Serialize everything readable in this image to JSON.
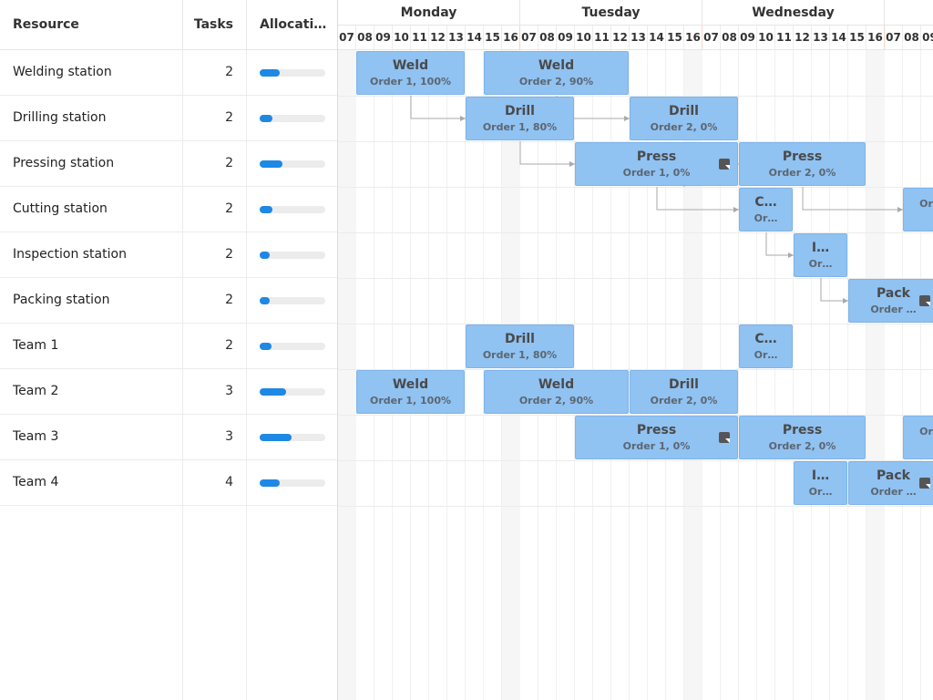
{
  "grid": {
    "headers": {
      "resource": "Resource",
      "tasks": "Tasks",
      "allocation": "Allocati…"
    },
    "rows": [
      {
        "name": "Welding station",
        "tasks": "2",
        "alloc": 0.3
      },
      {
        "name": "Drilling station",
        "tasks": "2",
        "alloc": 0.2
      },
      {
        "name": "Pressing station",
        "tasks": "2",
        "alloc": 0.35
      },
      {
        "name": "Cutting station",
        "tasks": "2",
        "alloc": 0.2
      },
      {
        "name": "Inspection station",
        "tasks": "2",
        "alloc": 0.15
      },
      {
        "name": "Packing station",
        "tasks": "2",
        "alloc": 0.15
      },
      {
        "name": "Team 1",
        "tasks": "2",
        "alloc": 0.18
      },
      {
        "name": "Team 2",
        "tasks": "3",
        "alloc": 0.4
      },
      {
        "name": "Team 3",
        "tasks": "3",
        "alloc": 0.48
      },
      {
        "name": "Team 4",
        "tasks": "4",
        "alloc": 0.3
      }
    ]
  },
  "timeline": {
    "days": [
      "Monday",
      "Tuesday",
      "Wednesday"
    ],
    "hours": [
      "07",
      "08",
      "09",
      "10",
      "11",
      "12",
      "13",
      "14",
      "15",
      "16"
    ]
  },
  "events": [
    {
      "title": "Weld",
      "sub": "Order 1, 100%",
      "row": 0,
      "start": 1,
      "span": 6,
      "note": false
    },
    {
      "title": "Weld",
      "sub": "Order 2, 90%",
      "row": 0,
      "start": 8,
      "span": 8,
      "note": false
    },
    {
      "title": "Drill",
      "sub": "Order 1, 80%",
      "row": 1,
      "start": 7,
      "span": 6,
      "note": false
    },
    {
      "title": "Drill",
      "sub": "Order 2, 0%",
      "row": 1,
      "start": 16,
      "span": 6,
      "note": false
    },
    {
      "title": "Press",
      "sub": "Order 1, 0%",
      "row": 2,
      "start": 13,
      "span": 9,
      "note": true
    },
    {
      "title": "Press",
      "sub": "Order 2, 0%",
      "row": 2,
      "start": 22,
      "span": 7,
      "note": false
    },
    {
      "title": "C…",
      "sub": "Or…",
      "row": 3,
      "start": 22,
      "span": 3,
      "note": false
    },
    {
      "title": "",
      "sub": "Ord",
      "row": 3,
      "start": 31,
      "span": 3,
      "note": false
    },
    {
      "title": "I…",
      "sub": "Or…",
      "row": 4,
      "start": 25,
      "span": 3,
      "note": false
    },
    {
      "title": "Pack",
      "sub": "Order …",
      "row": 5,
      "start": 28,
      "span": 5,
      "note": true
    },
    {
      "title": "Drill",
      "sub": "Order 1, 80%",
      "row": 6,
      "start": 7,
      "span": 6,
      "note": false
    },
    {
      "title": "C…",
      "sub": "Or…",
      "row": 6,
      "start": 22,
      "span": 3,
      "note": false
    },
    {
      "title": "Weld",
      "sub": "Order 1, 100%",
      "row": 7,
      "start": 1,
      "span": 6,
      "note": false
    },
    {
      "title": "Weld",
      "sub": "Order 2, 90%",
      "row": 7,
      "start": 8,
      "span": 8,
      "note": false
    },
    {
      "title": "Drill",
      "sub": "Order 2, 0%",
      "row": 7,
      "start": 16,
      "span": 6,
      "note": false
    },
    {
      "title": "Press",
      "sub": "Order 1, 0%",
      "row": 8,
      "start": 13,
      "span": 9,
      "note": true
    },
    {
      "title": "Press",
      "sub": "Order 2, 0%",
      "row": 8,
      "start": 22,
      "span": 7,
      "note": false
    },
    {
      "title": "",
      "sub": "Ord",
      "row": 8,
      "start": 31,
      "span": 3,
      "note": false
    },
    {
      "title": "I…",
      "sub": "Or…",
      "row": 9,
      "start": 25,
      "span": 3,
      "note": false
    },
    {
      "title": "Pack",
      "sub": "Order …",
      "row": 9,
      "start": 28,
      "span": 5,
      "note": true
    }
  ],
  "colors": {
    "event": "#90c2f2",
    "allocation": "#1e88e5"
  }
}
